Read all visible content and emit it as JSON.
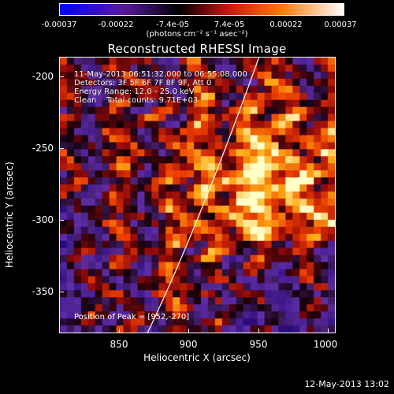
{
  "colorbar": {
    "tick_labels": [
      "-0.00037",
      "-0.00022",
      "-7.4e-05",
      "7.4e-05",
      "0.00022",
      "0.00037"
    ],
    "units": "(photons cm⁻² s⁻¹ asec⁻²)",
    "colors": [
      "#0000ff",
      "#5a1aa0",
      "#000000",
      "#c01010",
      "#ff7a00",
      "#ffffff"
    ]
  },
  "title": "Reconstructed RHESSI Image",
  "overlay": {
    "time_range": "11-May-2013 06:51:32.000 to 06:55:08.000",
    "detectors": "Detectors: 3F 5F 6F 7F 8F 9F, Att 0",
    "energy_range": "Energy Range: 12.0 - 25.0 keV",
    "method": "Clean    Total counts: 9.71E+03",
    "peak": "Position of Peak = [952,-270]"
  },
  "axes": {
    "xlabel": "Heliocentric X (arcsec)",
    "ylabel": "Heliocentric Y (arcsec)",
    "xticks": [
      "850",
      "900",
      "950",
      "1000"
    ],
    "yticks": [
      "-200",
      "-250",
      "-300",
      "-350"
    ]
  },
  "timestamp": "12-May-2013 13:02"
}
